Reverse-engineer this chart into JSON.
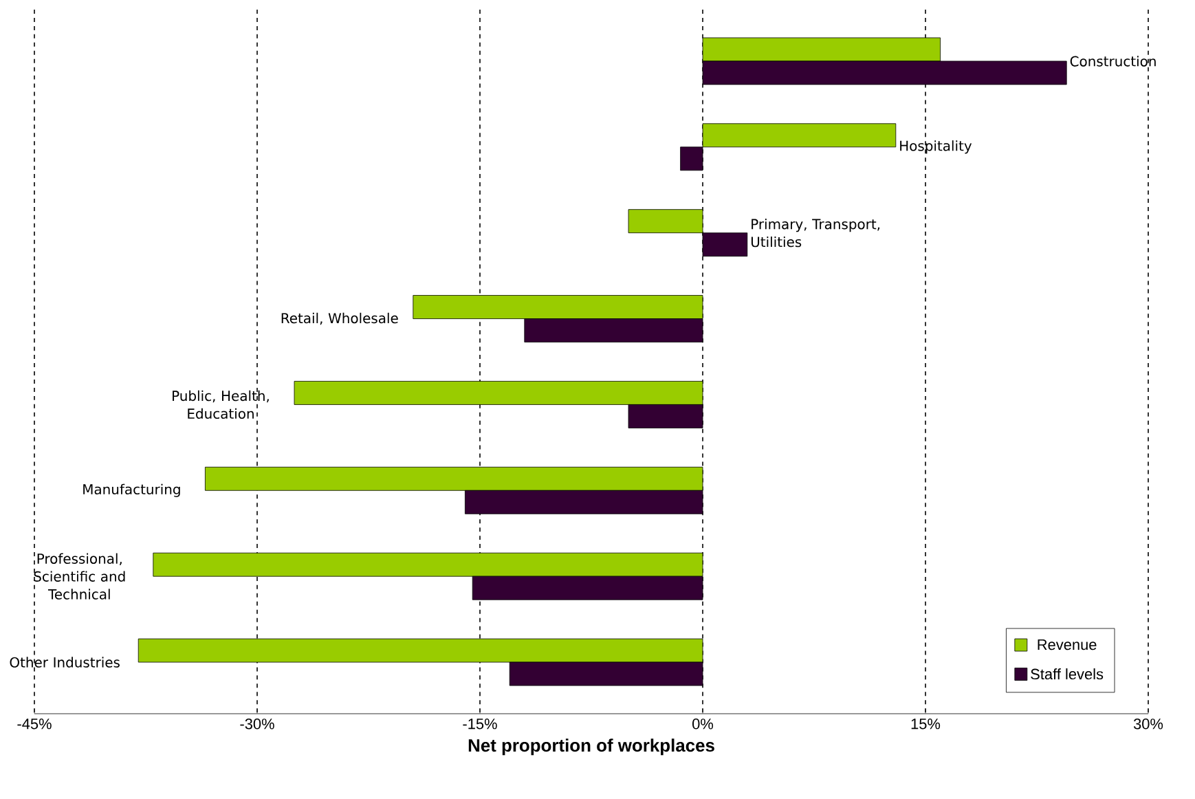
{
  "chart_data": {
    "type": "bar",
    "orientation": "horizontal",
    "xlabel": "Net proportion of workplaces",
    "categories": [
      "Construction",
      "Hospitality",
      "Primary, Transport, Utilities",
      "Retail, Wholesale",
      "Public, Health, Education",
      "Manufacturing",
      "Professional, Scientific and Technical",
      "Other Industries"
    ],
    "series": [
      {
        "name": "Revenue",
        "color": "#99cc00",
        "values": [
          16,
          13,
          -5,
          -19.5,
          -27.5,
          -33.5,
          -37,
          -38
        ]
      },
      {
        "name": "Staff levels",
        "color": "#330033",
        "values": [
          24.5,
          -1.5,
          3,
          -12,
          -5,
          -16,
          -15.5,
          -13
        ]
      }
    ],
    "xlim": [
      -45,
      30
    ],
    "xticks": [
      {
        "value": -45,
        "label": "-45%"
      },
      {
        "value": -30,
        "label": "-30%"
      },
      {
        "value": -15,
        "label": "-15%"
      },
      {
        "value": 0,
        "label": "0%"
      },
      {
        "value": 15,
        "label": "15%"
      },
      {
        "value": 30,
        "label": "30%"
      }
    ],
    "grid": "x",
    "legend": "bottom right"
  }
}
